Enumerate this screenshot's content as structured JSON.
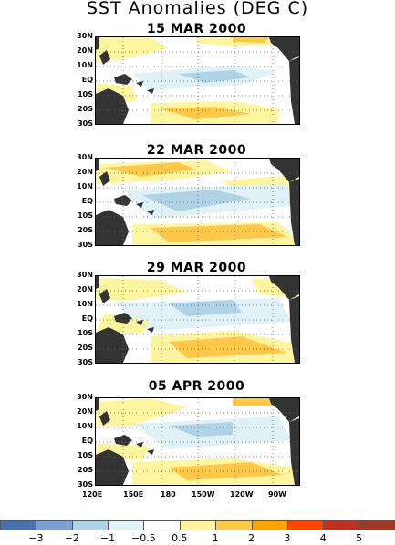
{
  "title": "SST Anomalies (DEG C)",
  "panels": [
    {
      "date": "15 MAR 2000"
    },
    {
      "date": "22 MAR 2000"
    },
    {
      "date": "29 MAR 2000"
    },
    {
      "date": "05 APR 2000"
    }
  ],
  "lat_labels": [
    "30N",
    "20N",
    "10N",
    "EQ",
    "10S",
    "20S",
    "30S"
  ],
  "lon_labels": [
    "120E",
    "150E",
    "180",
    "150W",
    "120W",
    "90W"
  ],
  "colorbar": {
    "labels": [
      "-3",
      "-2",
      "-1",
      "-0.5",
      "0.5",
      "1",
      "2",
      "3",
      "4",
      "5"
    ],
    "colors": [
      "#4a70b0",
      "#7f9fd0",
      "#b0d4e6",
      "#e0f2f8",
      "#ffffff",
      "#fff5a0",
      "#ffc84a",
      "#ffa500",
      "#ff4500",
      "#c03020",
      "#a03828"
    ]
  }
}
